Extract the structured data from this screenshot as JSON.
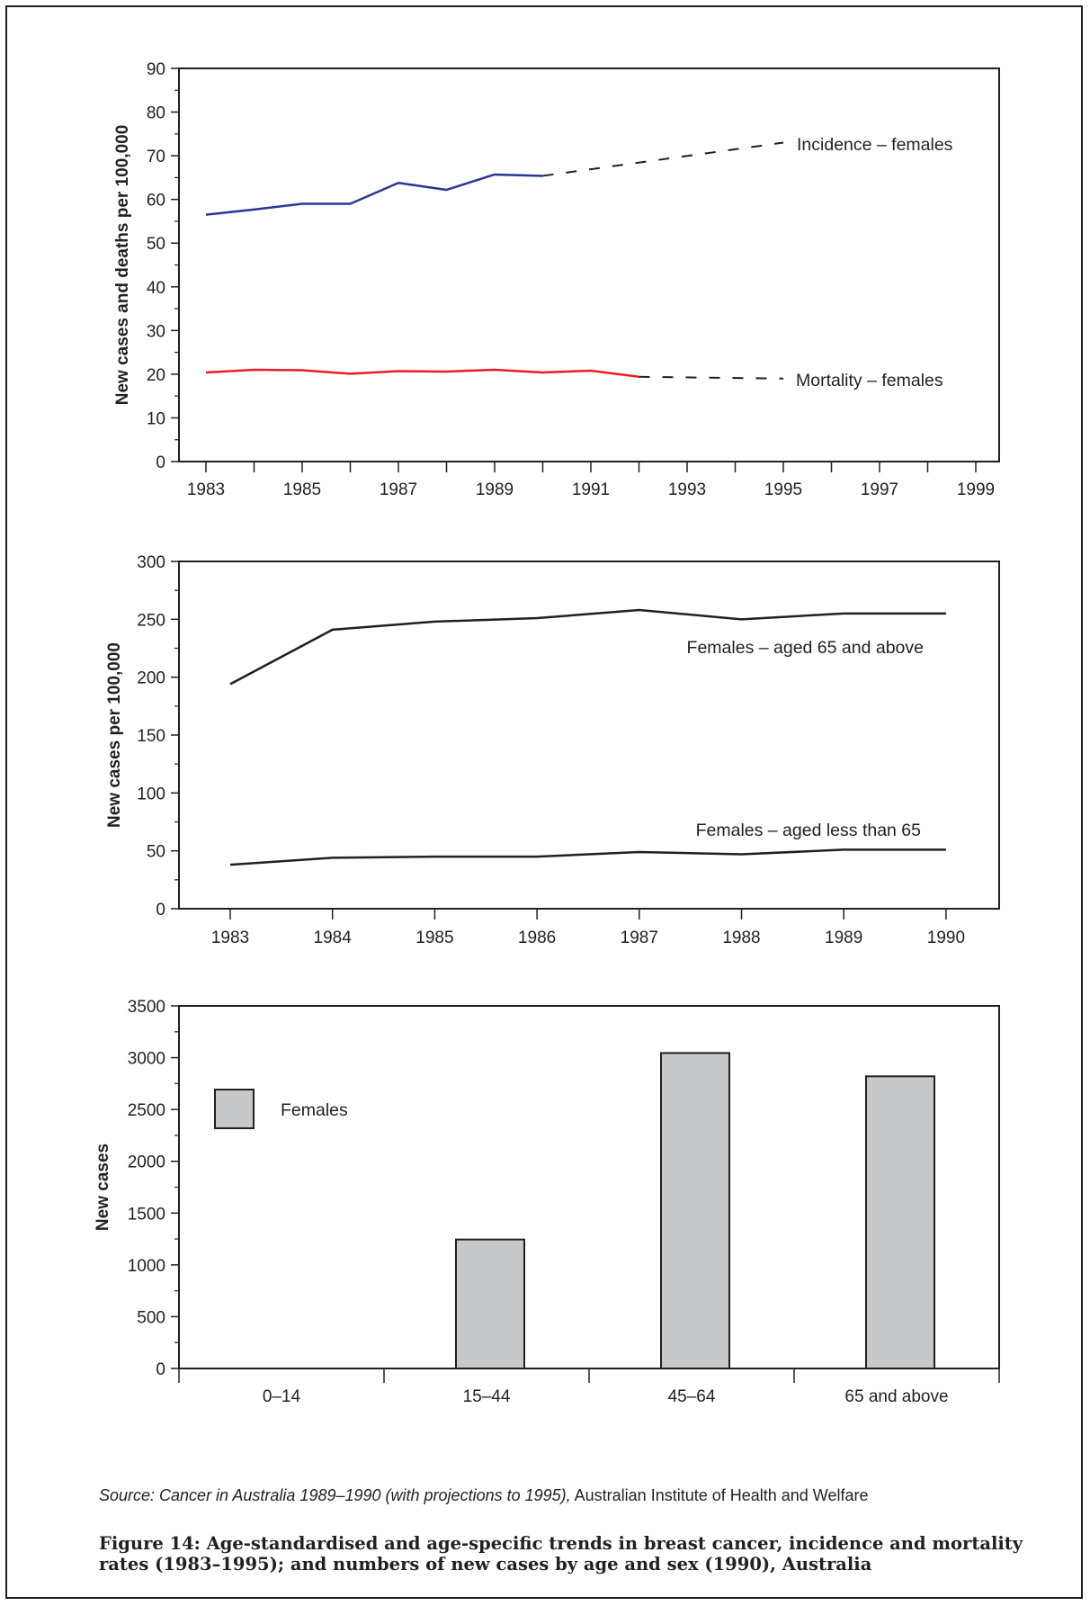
{
  "chart_data": [
    {
      "type": "line",
      "ylabel": "New cases and deaths per 100,000",
      "xlabel": "",
      "ylim": [
        0,
        90
      ],
      "yticks": [
        0,
        10,
        20,
        30,
        40,
        50,
        60,
        70,
        80,
        90
      ],
      "xlim": [
        1983,
        1999
      ],
      "xtick_labels": [
        "1983",
        "1985",
        "1987",
        "1989",
        "1991",
        "1993",
        "1995",
        "1997",
        "1999"
      ],
      "series": [
        {
          "name": "Incidence – females",
          "color": "#2b3595",
          "x": [
            1983,
            1984,
            1985,
            1986,
            1987,
            1988,
            1989,
            1990
          ],
          "y": [
            56.5,
            57.7,
            59.0,
            59.0,
            63.8,
            62.2,
            65.7,
            65.4
          ],
          "projection": {
            "x": [
              1990,
              1995
            ],
            "y": [
              65.4,
              73.0
            ],
            "style": "dashed"
          }
        },
        {
          "name": "Mortality – females",
          "color": "#ed1c24",
          "x": [
            1983,
            1984,
            1985,
            1986,
            1987,
            1988,
            1989,
            1990,
            1991,
            1992
          ],
          "y": [
            20.4,
            21.0,
            20.9,
            20.1,
            20.7,
            20.6,
            21.0,
            20.4,
            20.8,
            19.4
          ],
          "projection": {
            "x": [
              1992,
              1995
            ],
            "y": [
              19.4,
              19.0
            ],
            "style": "dashed"
          }
        }
      ],
      "annotations": [
        "Incidence – females",
        "Mortality – females"
      ]
    },
    {
      "type": "line",
      "ylabel": "New cases per 100,000",
      "xlabel": "",
      "ylim": [
        0,
        300
      ],
      "yticks": [
        0,
        50,
        100,
        150,
        200,
        250,
        300
      ],
      "categories": [
        "1983",
        "1984",
        "1985",
        "1986",
        "1987",
        "1988",
        "1989",
        "1990"
      ],
      "series": [
        {
          "name": "Females – aged 65 and above",
          "color": "#231f20",
          "values": [
            194,
            241,
            248,
            251,
            258,
            250,
            255,
            255
          ]
        },
        {
          "name": "Females – aged less than 65",
          "color": "#231f20",
          "values": [
            38,
            44,
            45,
            45,
            49,
            47,
            51,
            51
          ]
        }
      ],
      "annotations": [
        "Females – aged 65 and above",
        "Females – aged less than 65"
      ]
    },
    {
      "type": "bar",
      "ylabel": "New cases",
      "xlabel": "",
      "ylim": [
        0,
        3500
      ],
      "yticks": [
        0,
        500,
        1000,
        1500,
        2000,
        2500,
        3000,
        3500
      ],
      "categories": [
        "0–14",
        "15–44",
        "45–64",
        "65 and above"
      ],
      "series": [
        {
          "name": "Females",
          "color": "#c7c8ca",
          "values": [
            0,
            1245,
            3045,
            2820
          ]
        }
      ],
      "legend": {
        "position": "top-left",
        "label": "Females"
      }
    }
  ],
  "source": {
    "italic": "Source: Cancer in Australia 1989–1990 (with projections to 1995),",
    "normal": " Australian Institute of Health and Welfare"
  },
  "caption": "Figure 14: Age-standardised and age-specific trends in breast cancer, incidence and mortality rates (1983–1995); and numbers of new cases by age and sex (1990), Australia"
}
